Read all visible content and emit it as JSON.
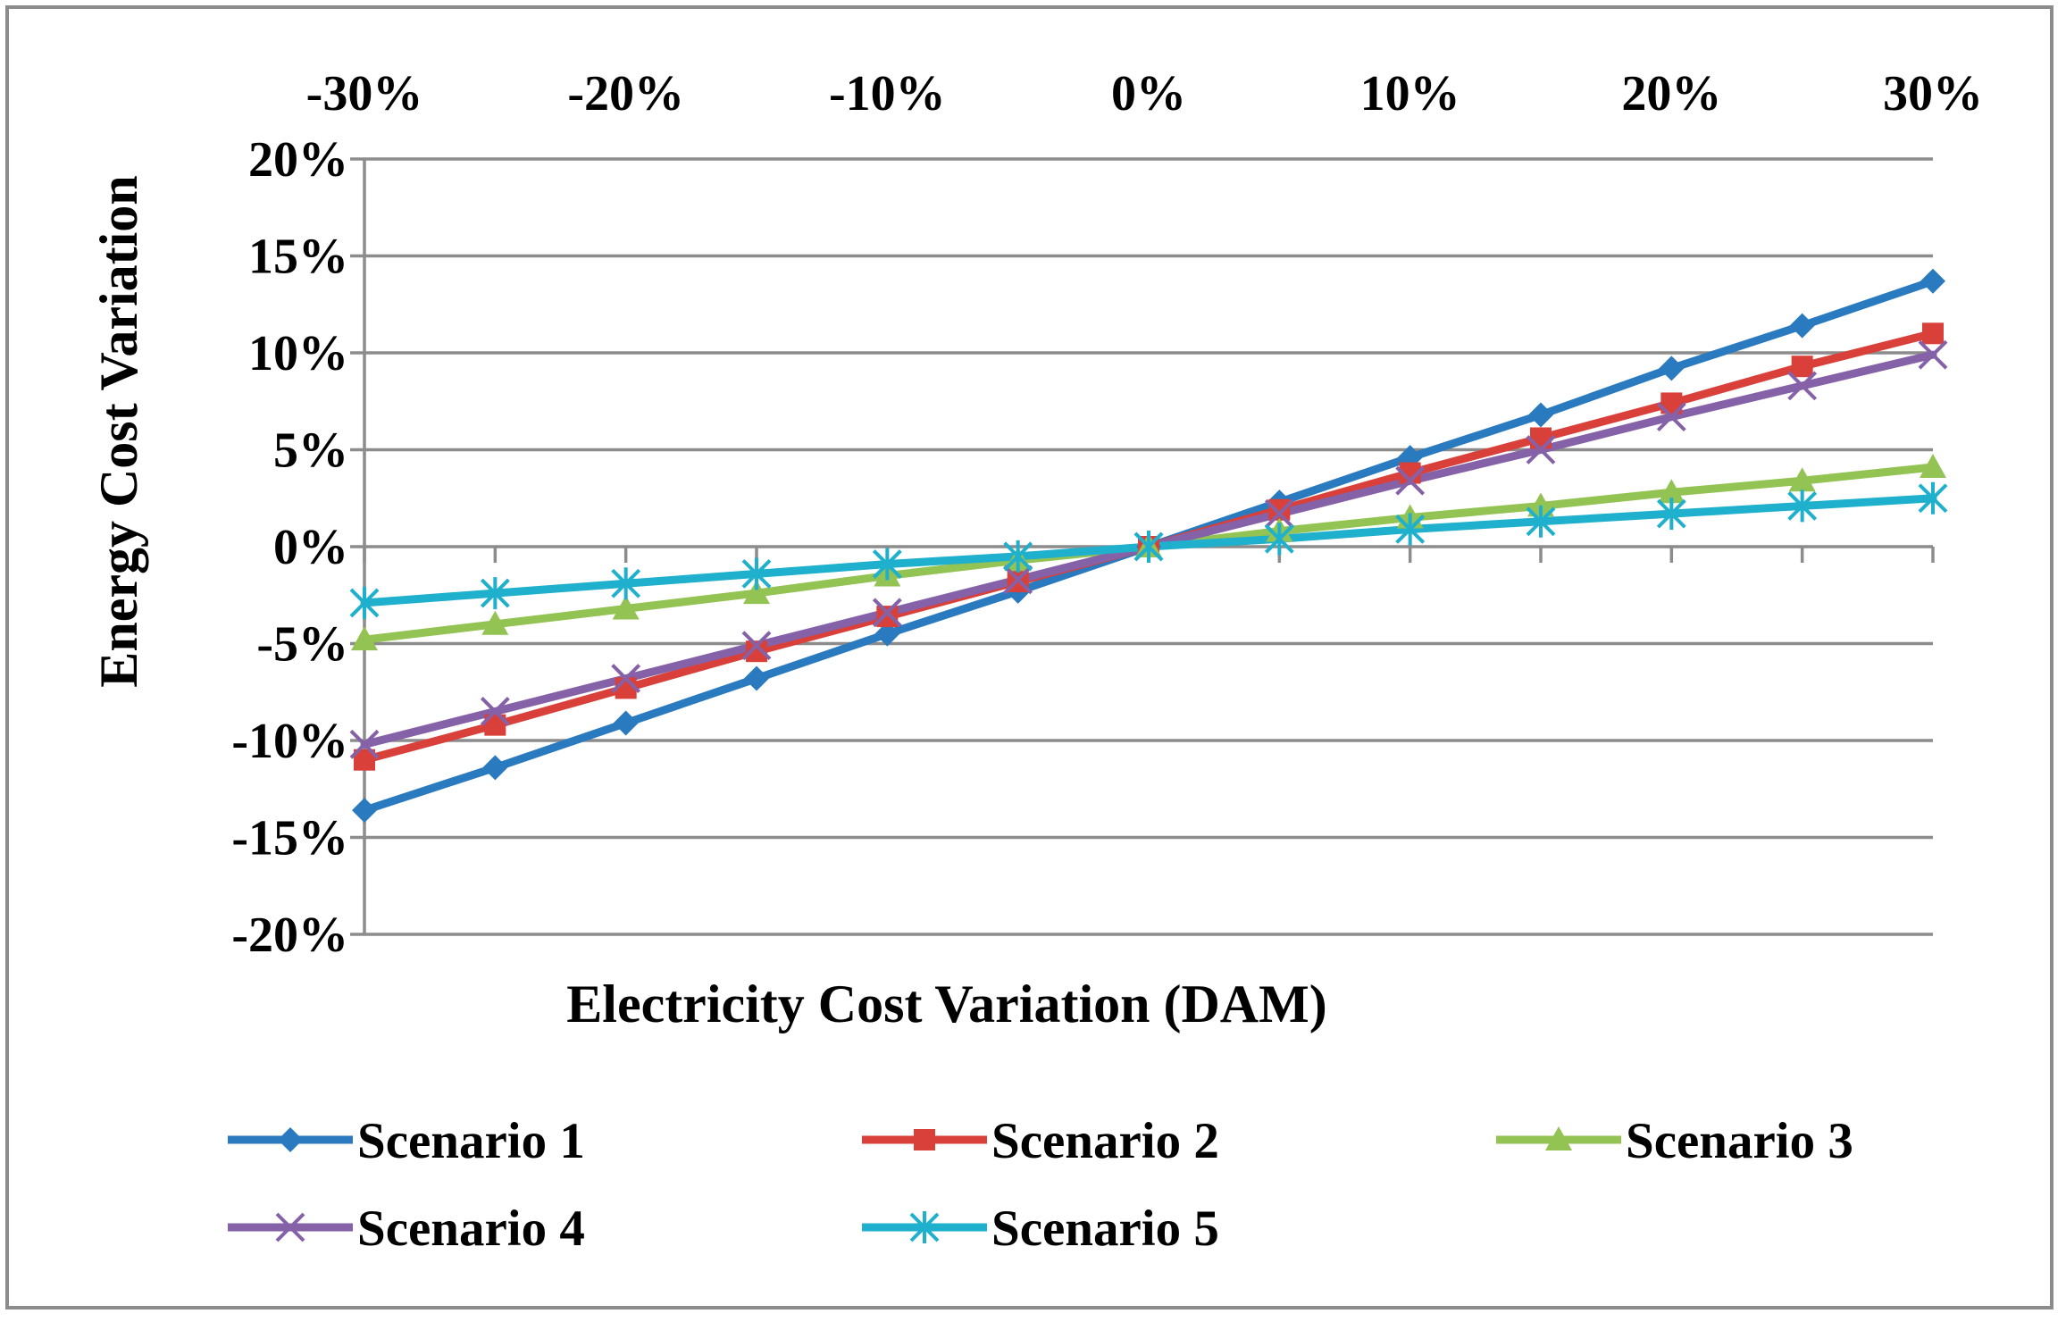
{
  "chart_data": {
    "type": "line",
    "title": "",
    "xlabel": "Electricity Cost Variation (DAM)",
    "ylabel": "Energy Cost Variation",
    "x": [
      -30,
      -25,
      -20,
      -15,
      -10,
      -5,
      0,
      5,
      10,
      15,
      20,
      25,
      30
    ],
    "xlim": [
      -30,
      30
    ],
    "ylim": [
      -20,
      20
    ],
    "x_ticks": [
      -30,
      -20,
      -10,
      0,
      10,
      20,
      30
    ],
    "x_tick_labels": [
      "-30%",
      "-20%",
      "-10%",
      "0%",
      "10%",
      "20%",
      "30%"
    ],
    "y_ticks": [
      20,
      15,
      10,
      5,
      0,
      -5,
      -10,
      -15,
      -20
    ],
    "y_tick_labels": [
      "20%",
      "15%",
      "10%",
      "5%",
      "0%",
      "-5%",
      "-10%",
      "-15%",
      "-20%"
    ],
    "x_axis_position": "top",
    "grid": true,
    "legend_position": "bottom",
    "series": [
      {
        "name": "Scenario 1",
        "color": "#2a7ac0",
        "marker": "diamond",
        "values": [
          -13.6,
          -11.4,
          -9.1,
          -6.8,
          -4.5,
          -2.3,
          0,
          2.3,
          4.6,
          6.8,
          9.2,
          11.4,
          13.7
        ]
      },
      {
        "name": "Scenario 2",
        "color": "#d9403a",
        "marker": "square",
        "values": [
          -11.0,
          -9.2,
          -7.3,
          -5.4,
          -3.6,
          -1.8,
          0,
          1.9,
          3.8,
          5.6,
          7.4,
          9.3,
          11.0
        ]
      },
      {
        "name": "Scenario 3",
        "color": "#93c352",
        "marker": "triangle",
        "values": [
          -4.8,
          -4.0,
          -3.2,
          -2.4,
          -1.5,
          -0.7,
          0,
          0.8,
          1.5,
          2.1,
          2.8,
          3.4,
          4.1
        ]
      },
      {
        "name": "Scenario 4",
        "color": "#8561a8",
        "marker": "x",
        "values": [
          -10.2,
          -8.5,
          -6.8,
          -5.1,
          -3.4,
          -1.7,
          0,
          1.7,
          3.4,
          5.0,
          6.7,
          8.3,
          9.9
        ]
      },
      {
        "name": "Scenario 5",
        "color": "#1eb0cc",
        "marker": "asterisk",
        "values": [
          -2.9,
          -2.4,
          -1.9,
          -1.4,
          -0.9,
          -0.5,
          0,
          0.4,
          0.9,
          1.3,
          1.7,
          2.1,
          2.5
        ]
      }
    ]
  }
}
